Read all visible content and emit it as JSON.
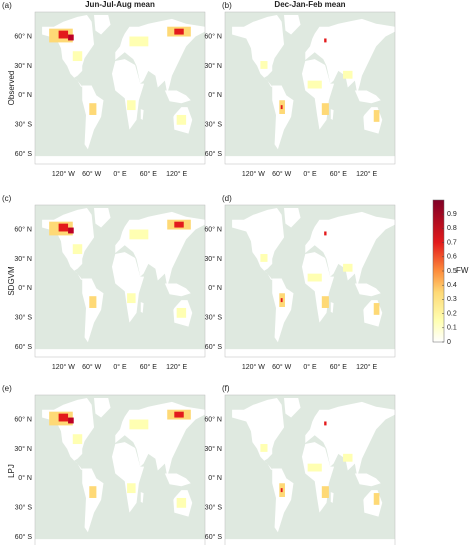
{
  "columns": [
    "Jun-Jul-Aug mean",
    "Dec-Jan-Feb mean"
  ],
  "rows": [
    "Observed",
    "SDGVM",
    "LPJ"
  ],
  "panels": [
    "(a)",
    "(b)",
    "(c)",
    "(d)",
    "(e)",
    "(f)"
  ],
  "lat_labels": [
    "60° N",
    "30° N",
    "0° N",
    "30° S",
    "60° S"
  ],
  "lon_labels": [
    "120° W",
    "60° W",
    "0° E",
    "60° E",
    "120° E"
  ],
  "colorbar": {
    "label": "FW",
    "lim": [
      0,
      1
    ],
    "ticks": [
      0,
      0.1,
      0.2,
      0.3,
      0.4,
      0.5,
      0.6,
      0.7,
      0.8,
      0.9
    ]
  }
}
